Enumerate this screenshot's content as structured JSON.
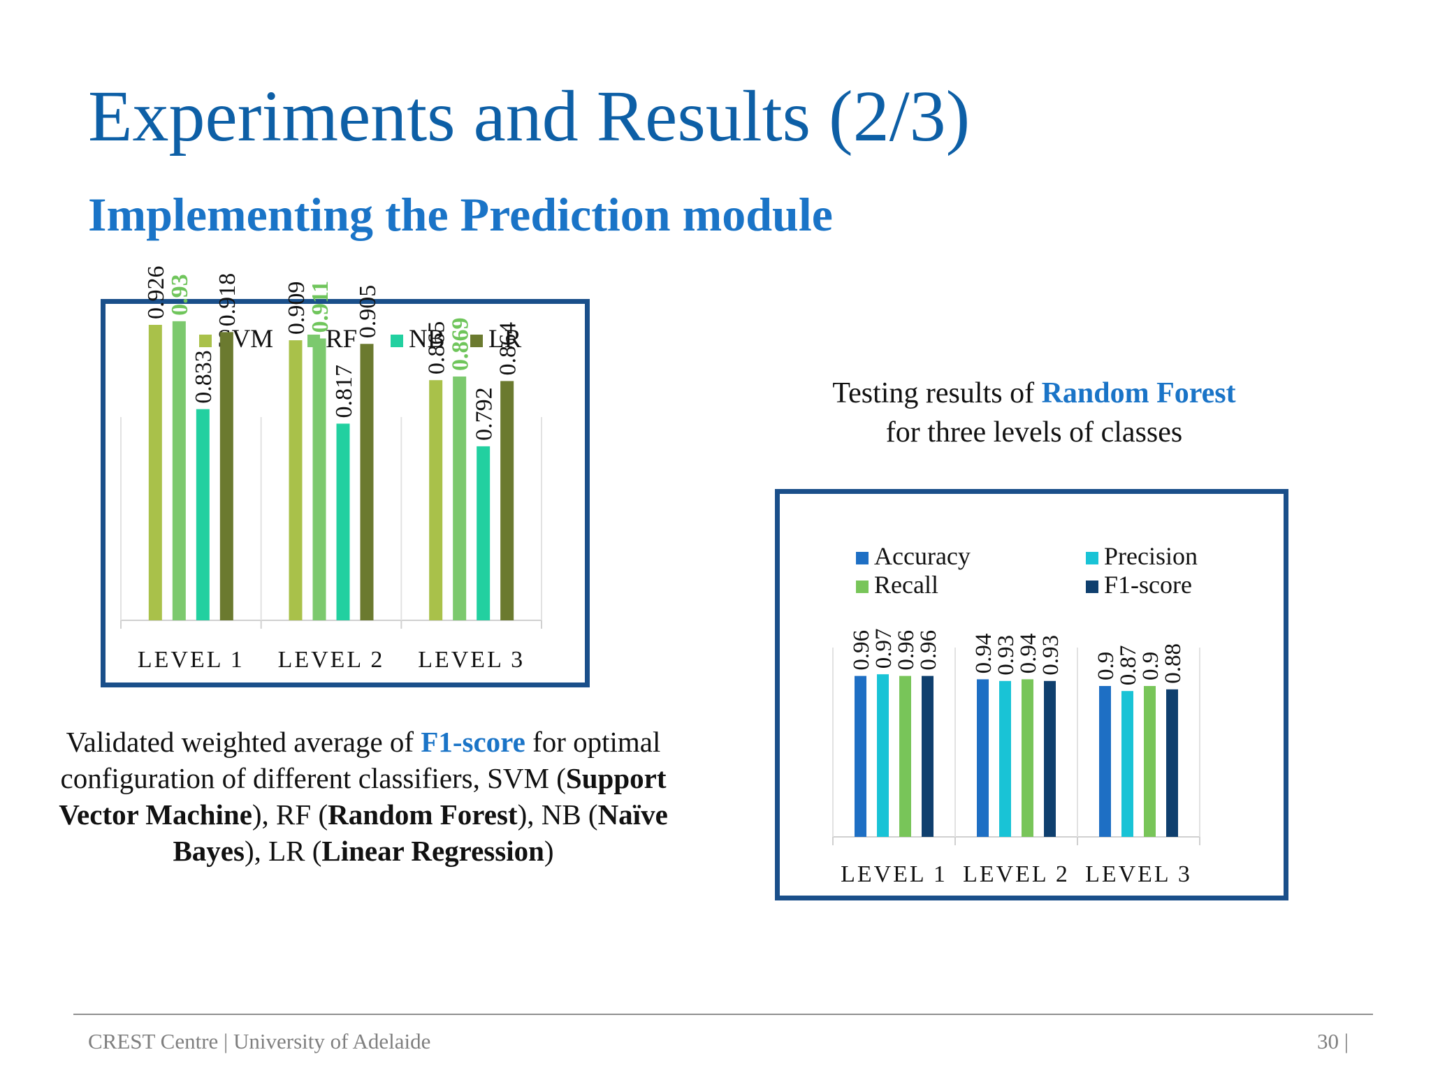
{
  "slide": {
    "title": "Experiments and Results (2/3)",
    "subtitle": "Implementing the Prediction module"
  },
  "captions": {
    "left": {
      "p1": "Validated weighted average of ",
      "f1": "F1-score",
      "p2": " for optimal configuration of different classifiers, SVM (",
      "svm_full": "Support Vector Machine",
      "p3": "), RF (",
      "rf_full": "Random Forest",
      "p4": "), NB (",
      "nb_full": "Naïve Bayes",
      "p5": "), LR (",
      "lr_full": "Linear Regression",
      "p6": ")"
    },
    "right": {
      "p1": "Testing results of ",
      "rf": "Random Forest",
      "p2": "for three levels of classes"
    }
  },
  "footer": {
    "left": "CREST Centre | University of Adelaide",
    "right": "30 |"
  },
  "chart_data": [
    {
      "type": "bar",
      "categories": [
        "LEVEL 1",
        "LEVEL 2",
        "LEVEL 3"
      ],
      "series": [
        {
          "name": "SVM",
          "values": [
            0.926,
            0.909,
            0.865
          ],
          "color": "#a9c14a"
        },
        {
          "name": "RF",
          "values": [
            0.93,
            0.911,
            0.869
          ],
          "color": "#7cc96e"
        },
        {
          "name": "NB",
          "values": [
            0.833,
            0.817,
            0.792
          ],
          "color": "#22d0a0"
        },
        {
          "name": "LR",
          "values": [
            0.918,
            0.905,
            0.864
          ],
          "color": "#6b7a2f"
        }
      ],
      "data_label_text": [
        "0.926",
        "0.93",
        "0.833",
        "0.918",
        "0.909",
        "0.911",
        "0.817",
        "0.905",
        "0.865",
        "0.869",
        "0.792",
        "0.864"
      ],
      "highlight_series": "RF",
      "highlight_color": "#6fc55b",
      "ylim": [
        0.6,
        1.0
      ],
      "legend": "top",
      "grid": false
    },
    {
      "type": "bar",
      "categories": [
        "LEVEL 1",
        "LEVEL 2",
        "LEVEL 3"
      ],
      "series": [
        {
          "name": "Accuracy",
          "values": [
            0.96,
            0.94,
            0.9
          ],
          "color": "#1e6fc4"
        },
        {
          "name": "Precision",
          "values": [
            0.97,
            0.93,
            0.87
          ],
          "color": "#19c3d6"
        },
        {
          "name": "Recall",
          "values": [
            0.96,
            0.94,
            0.9
          ],
          "color": "#78c559"
        },
        {
          "name": "F1-score",
          "values": [
            0.96,
            0.93,
            0.88
          ],
          "color": "#0f3f6e"
        }
      ],
      "data_label_text": [
        "0.96",
        "0.97",
        "0.96",
        "0.96",
        "0.94",
        "0.93",
        "0.94",
        "0.93",
        "0.9",
        "0.87",
        "0.9",
        "0.88"
      ],
      "ylim": [
        0.0,
        1.0
      ],
      "legend": "top",
      "grid": false
    }
  ]
}
